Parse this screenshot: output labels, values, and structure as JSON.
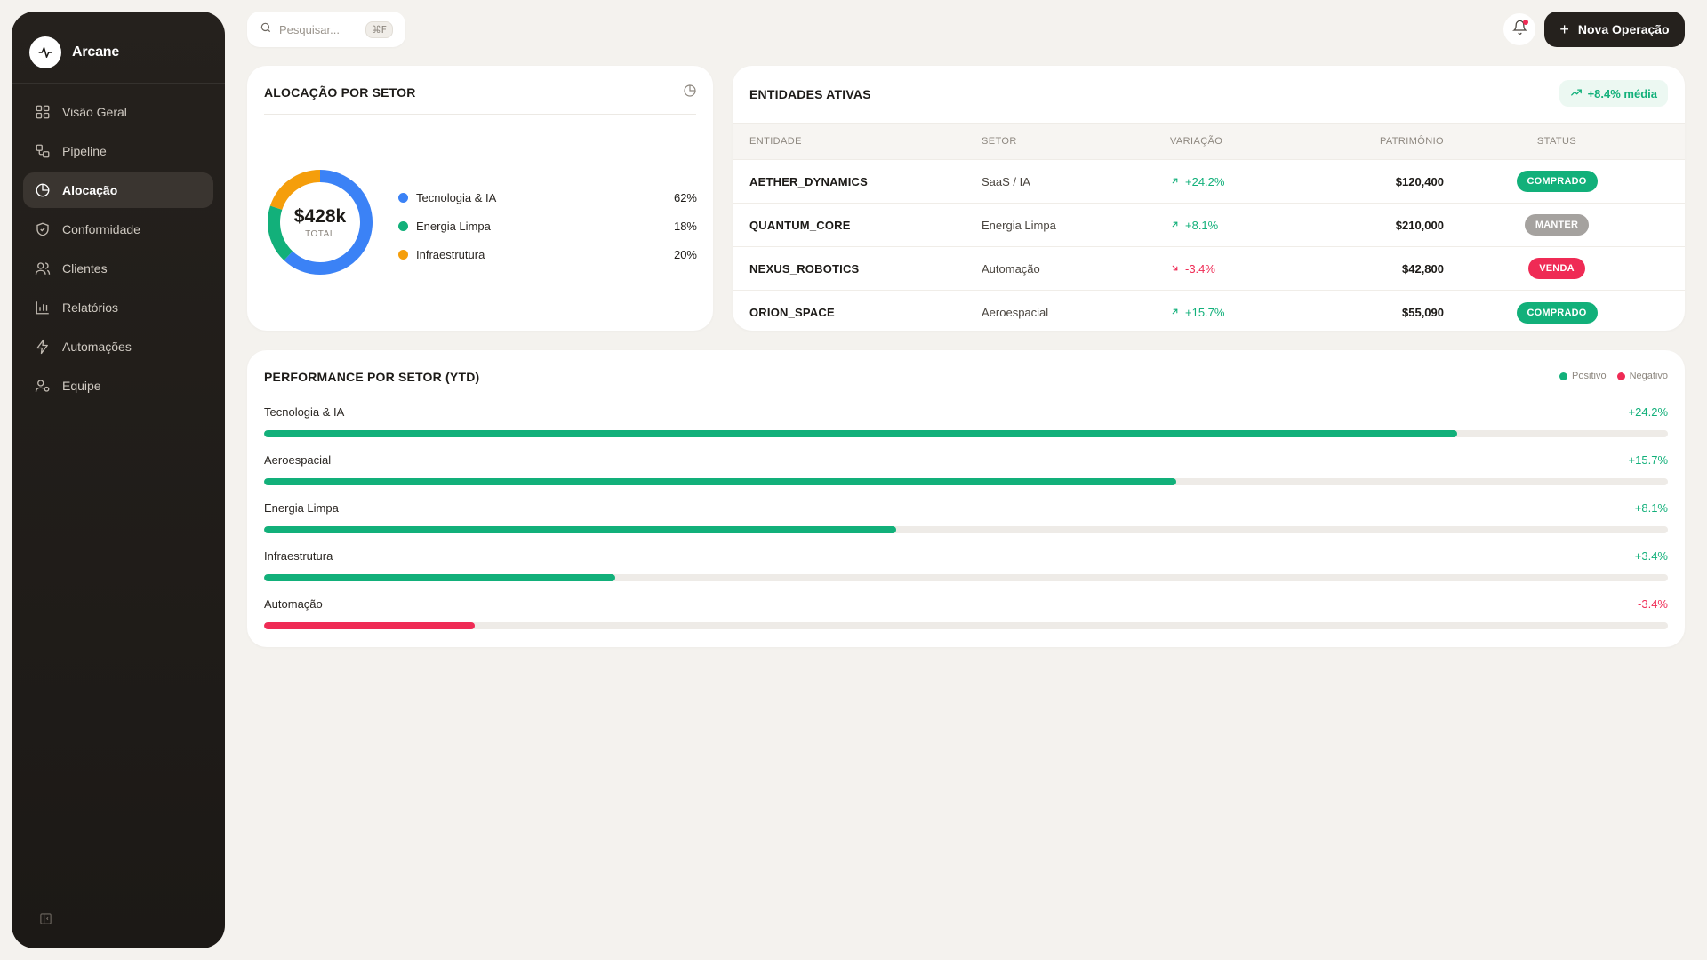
{
  "brand": {
    "name": "Arcane"
  },
  "sidebar": {
    "items": [
      {
        "label": "Visão Geral",
        "icon": "grid-icon",
        "active": false
      },
      {
        "label": "Pipeline",
        "icon": "workflow-icon",
        "active": false
      },
      {
        "label": "Alocação",
        "icon": "pie-chart-icon",
        "active": true
      },
      {
        "label": "Conformidade",
        "icon": "shield-icon",
        "active": false
      },
      {
        "label": "Clientes",
        "icon": "users-icon",
        "active": false
      },
      {
        "label": "Relatórios",
        "icon": "bar-chart-icon",
        "active": false
      },
      {
        "label": "Automações",
        "icon": "zap-icon",
        "active": false
      },
      {
        "label": "Equipe",
        "icon": "user-gear-icon",
        "active": false
      }
    ]
  },
  "header": {
    "search": {
      "placeholder": "Pesquisar...",
      "shortcut": "⌘F"
    },
    "new_operation_label": "Nova Operação"
  },
  "allocation": {
    "title": "ALOCAÇÃO POR SETOR",
    "total_value": "$428k",
    "total_label": "TOTAL",
    "sectors": [
      {
        "name": "Tecnologia & IA",
        "percent": "62%",
        "share": 62,
        "color": "#3b82f6"
      },
      {
        "name": "Energia Limpa",
        "percent": "18%",
        "share": 18,
        "color": "#12b07a"
      },
      {
        "name": "Infraestrutura",
        "percent": "20%",
        "share": 20,
        "color": "#f59e0b"
      }
    ]
  },
  "entities": {
    "title": "ENTIDADES ATIVAS",
    "average_badge": "+8.4% média",
    "columns": [
      "ENTIDADE",
      "SETOR",
      "VARIAÇÃO",
      "PATRIMÔNIO",
      "STATUS"
    ],
    "rows": [
      {
        "entity": "AETHER_DYNAMICS",
        "sector": "SaaS / IA",
        "variation": "+24.2%",
        "direction": "up",
        "equity": "$120,400",
        "status": "COMPRADO",
        "status_kind": "buy"
      },
      {
        "entity": "QUANTUM_CORE",
        "sector": "Energia Limpa",
        "variation": "+8.1%",
        "direction": "up",
        "equity": "$210,000",
        "status": "MANTER",
        "status_kind": "hold"
      },
      {
        "entity": "NEXUS_ROBOTICS",
        "sector": "Automação",
        "variation": "-3.4%",
        "direction": "down",
        "equity": "$42,800",
        "status": "VENDA",
        "status_kind": "sell"
      },
      {
        "entity": "ORION_SPACE",
        "sector": "Aeroespacial",
        "variation": "+15.7%",
        "direction": "up",
        "equity": "$55,090",
        "status": "COMPRADO",
        "status_kind": "buy"
      }
    ]
  },
  "performance": {
    "title": "PERFORMANCE POR SETOR (YTD)",
    "legend": {
      "positive": "Positivo",
      "negative": "Negativo"
    },
    "colors": {
      "positive": "#12b07a",
      "negative": "#ef2b55"
    },
    "bars": [
      {
        "name": "Tecnologia & IA",
        "value_label": "+24.2%",
        "value": 24.2,
        "fill_fraction": 0.85
      },
      {
        "name": "Aeroespacial",
        "value_label": "+15.7%",
        "value": 15.7,
        "fill_fraction": 0.65
      },
      {
        "name": "Energia Limpa",
        "value_label": "+8.1%",
        "value": 8.1,
        "fill_fraction": 0.45
      },
      {
        "name": "Infraestrutura",
        "value_label": "+3.4%",
        "value": 3.4,
        "fill_fraction": 0.25
      },
      {
        "name": "Automação",
        "value_label": "-3.4%",
        "value": -3.4,
        "fill_fraction": 0.15
      }
    ]
  }
}
